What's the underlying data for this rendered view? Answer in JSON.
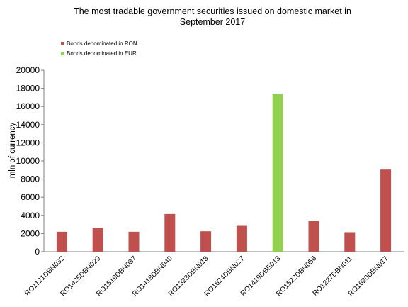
{
  "chart_data": {
    "type": "bar",
    "title_lines": [
      "The most  tradable government securities issued on domestic market in",
      "September 2017"
    ],
    "xlabel": "",
    "ylabel": "mln of currency",
    "ylim": [
      0,
      20000
    ],
    "yticks": [
      0,
      2000,
      4000,
      6000,
      8000,
      10000,
      12000,
      14000,
      16000,
      18000,
      20000
    ],
    "grid": false,
    "legend_position": "top-left",
    "categories": [
      "RO1121DBN032",
      "RO1425DBN029",
      "RO1519DBN037",
      "RO1418DBN040",
      "RO1323DBN018",
      "RO1624DBN027",
      "RO1419DBE013",
      "RO1522DBN056",
      "RO1227DBN011",
      "RO1620DBN017"
    ],
    "series": [
      {
        "name": "Bonds denominated in RON",
        "color": "#c0504d",
        "values": [
          2200,
          2650,
          2200,
          4150,
          2250,
          2850,
          null,
          3400,
          2150,
          9050
        ]
      },
      {
        "name": "Bonds denominated in EUR",
        "color": "#92d050",
        "values": [
          null,
          null,
          null,
          null,
          null,
          null,
          17350,
          null,
          null,
          null
        ]
      }
    ]
  }
}
